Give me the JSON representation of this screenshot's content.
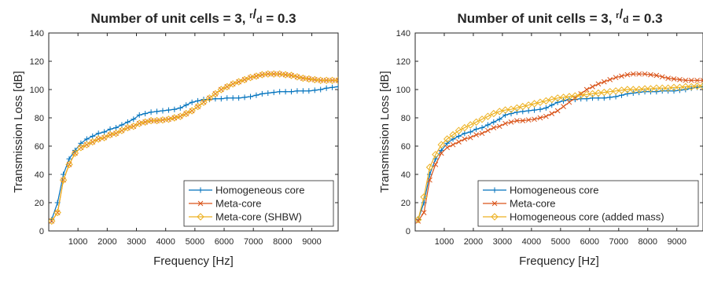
{
  "chart_data": [
    {
      "type": "line",
      "title_prefix": "Number of unit cells = 3,",
      "title_frac_num": "r",
      "title_frac_den": "d",
      "title_suffix": "= 0.3",
      "xlabel": "Frequency [Hz]",
      "ylabel": "Transmission Loss [dB]",
      "xlim": [
        0,
        9900
      ],
      "ylim": [
        0,
        140
      ],
      "xticks": [
        1000,
        2000,
        3000,
        4000,
        5000,
        6000,
        7000,
        8000,
        9000
      ],
      "yticks": [
        0,
        20,
        40,
        60,
        80,
        100,
        120,
        140
      ],
      "grid": false,
      "legend_position": "bottom-right",
      "x": [
        100,
        300,
        500,
        700,
        900,
        1100,
        1300,
        1500,
        1700,
        1900,
        2100,
        2300,
        2500,
        2700,
        2900,
        3100,
        3300,
        3500,
        3700,
        3900,
        4100,
        4300,
        4500,
        4700,
        4900,
        5100,
        5300,
        5500,
        5700,
        5900,
        6100,
        6300,
        6500,
        6700,
        6900,
        7100,
        7300,
        7500,
        7700,
        7900,
        8100,
        8300,
        8500,
        8700,
        8900,
        9100,
        9300,
        9500,
        9700,
        9900
      ],
      "series": [
        {
          "name": "Homogeneous core",
          "color": "#0072BD",
          "marker": "plus",
          "values": [
            8,
            20,
            40,
            51,
            57,
            62,
            65,
            67,
            69,
            70,
            72,
            73,
            75,
            77,
            79,
            82,
            83,
            84,
            84.5,
            85,
            85.5,
            86,
            87,
            89,
            91,
            92,
            93,
            93,
            93.5,
            93.5,
            94,
            94,
            94,
            94.5,
            95,
            96,
            97,
            97.5,
            98,
            98.5,
            98.5,
            98.5,
            99,
            99,
            99,
            99.5,
            100,
            101,
            101.5,
            102
          ]
        },
        {
          "name": "Meta-core",
          "color": "#D95319",
          "marker": "x",
          "values": [
            7,
            13,
            36,
            47,
            55,
            59,
            61,
            63,
            65,
            66,
            68,
            69,
            71,
            73,
            74,
            76,
            77,
            78,
            78,
            78.5,
            79,
            80,
            81,
            83,
            85,
            88,
            91,
            94,
            97,
            100,
            102,
            104,
            105.5,
            107,
            108.5,
            109.5,
            110.5,
            111,
            111,
            111,
            110.5,
            110,
            109,
            108,
            107.5,
            107,
            106.5,
            106.5,
            106.5,
            106.5
          ]
        },
        {
          "name": "Meta-core (SHBW)",
          "color": "#EDB120",
          "marker": "diamond",
          "values": [
            7,
            13,
            36,
            47,
            55,
            59,
            61,
            63,
            65,
            66,
            68,
            69,
            71,
            73,
            74,
            76,
            77,
            78,
            78,
            78.5,
            79,
            80,
            81,
            83,
            85,
            88,
            91,
            94,
            97,
            100,
            102,
            104,
            105.5,
            107,
            108.5,
            109.5,
            110.5,
            111,
            111,
            111,
            110.5,
            110,
            109,
            108,
            107.5,
            107,
            106.5,
            106.5,
            106.5,
            106.5
          ]
        }
      ]
    },
    {
      "type": "line",
      "title_prefix": "Number of unit cells = 3,",
      "title_frac_num": "r",
      "title_frac_den": "d",
      "title_suffix": "= 0.3",
      "xlabel": "Frequency [Hz]",
      "ylabel": "Transmission Loss [dB]",
      "xlim": [
        0,
        9900
      ],
      "ylim": [
        0,
        140
      ],
      "xticks": [
        1000,
        2000,
        3000,
        4000,
        5000,
        6000,
        7000,
        8000,
        9000
      ],
      "yticks": [
        0,
        20,
        40,
        60,
        80,
        100,
        120,
        140
      ],
      "grid": false,
      "legend_position": "bottom-right",
      "x": [
        100,
        300,
        500,
        700,
        900,
        1100,
        1300,
        1500,
        1700,
        1900,
        2100,
        2300,
        2500,
        2700,
        2900,
        3100,
        3300,
        3500,
        3700,
        3900,
        4100,
        4300,
        4500,
        4700,
        4900,
        5100,
        5300,
        5500,
        5700,
        5900,
        6100,
        6300,
        6500,
        6700,
        6900,
        7100,
        7300,
        7500,
        7700,
        7900,
        8100,
        8300,
        8500,
        8700,
        8900,
        9100,
        9300,
        9500,
        9700,
        9900
      ],
      "series": [
        {
          "name": "Homogeneous core",
          "color": "#0072BD",
          "marker": "plus",
          "values": [
            8,
            20,
            40,
            51,
            57,
            62,
            65,
            67,
            69,
            70,
            72,
            73,
            75,
            77,
            79,
            82,
            83,
            84,
            84.5,
            85,
            85.5,
            86,
            87,
            89,
            91,
            92,
            93,
            93,
            93.5,
            93.5,
            94,
            94,
            94,
            94.5,
            95,
            96,
            97,
            97.5,
            98,
            98.5,
            98.5,
            98.5,
            99,
            99,
            99,
            99.5,
            100,
            101,
            101.5,
            102
          ]
        },
        {
          "name": "Meta-core",
          "color": "#D95319",
          "marker": "x",
          "values": [
            7,
            13,
            36,
            47,
            55,
            59,
            61,
            63,
            65,
            66,
            68,
            69,
            71,
            73,
            74,
            76,
            77,
            78,
            78,
            78.5,
            79,
            80,
            81,
            83,
            85,
            88,
            91,
            94,
            97,
            100,
            102,
            104,
            105.5,
            107,
            108.5,
            109.5,
            110.5,
            111,
            111,
            111,
            110.5,
            110,
            109,
            108,
            107.5,
            107,
            106.5,
            106.5,
            106.5,
            106.5
          ]
        },
        {
          "name": "Homogeneous core (added mass)",
          "color": "#EDB120",
          "marker": "diamond",
          "values": [
            8,
            24,
            45,
            54,
            61,
            65,
            68,
            71,
            73,
            75,
            77,
            79,
            81,
            83,
            84.5,
            85.5,
            86,
            87,
            88,
            89,
            90,
            91,
            92,
            93,
            94,
            94.5,
            95,
            95.5,
            96,
            96.5,
            97,
            97.5,
            98,
            98.5,
            99,
            99.5,
            100,
            100,
            100,
            100.5,
            100.5,
            101,
            101,
            101,
            101.5,
            101.5,
            102,
            102,
            102.5,
            102.5
          ]
        }
      ]
    }
  ]
}
